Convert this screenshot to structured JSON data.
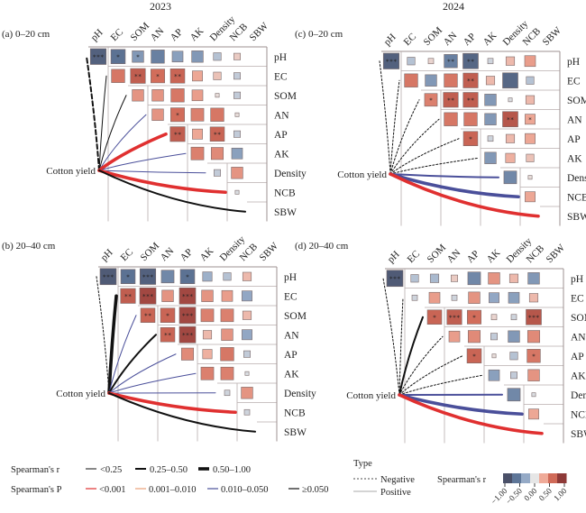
{
  "chart_data": {
    "type": "heatmap",
    "description": "Mantel-style correlation heatmaps of soil properties with links to cotton yield",
    "variables": [
      "pH",
      "EC",
      "SOM",
      "AN",
      "AP",
      "AK",
      "Density",
      "NCB",
      "SBW"
    ],
    "target_label": "Cotton yield",
    "years": [
      "2023",
      "2024"
    ],
    "panels": [
      {
        "id": "a",
        "title": "(a) 0–20 cm",
        "year": "2023",
        "cells": [
          [
            -0.85,
            -0.7,
            -0.45,
            -0.6,
            -0.4,
            -0.45,
            -0.2,
            0.15
          ],
          [
            0.6,
            0.75,
            0.65,
            0.7,
            0.35,
            0.2,
            -0.15
          ],
          [
            0.45,
            0.45,
            0.6,
            0.4,
            0.05,
            -0.15
          ],
          [
            0.45,
            0.65,
            0.55,
            0.6,
            0.05
          ],
          [
            0.75,
            0.35,
            0.7,
            -0.15
          ],
          [
            0.55,
            0.5,
            -0.4
          ],
          [
            -0.15,
            0.45
          ],
          [
            -0.05
          ]
        ],
        "stars": [
          [
            "***",
            "*",
            "*",
            "",
            "",
            "",
            "",
            ""
          ],
          [
            "",
            "**",
            "*",
            "**",
            "",
            "",
            ""
          ],
          [
            "",
            "",
            "",
            "",
            "",
            ""
          ],
          [
            "",
            "*",
            "",
            "",
            ""
          ],
          [
            "**",
            "",
            "**",
            ""
          ],
          [
            "",
            ""
          ],
          [
            "",
            ""
          ],
          [
            ""
          ]
        ],
        "links": [
          {
            "to": "pH",
            "r_class": "0.25-0.50",
            "p_class": ">=0.050",
            "type": "Negative"
          },
          {
            "to": "EC",
            "r_class": "<0.25",
            "p_class": ">=0.050",
            "type": "Positive"
          },
          {
            "to": "SOM",
            "r_class": "<0.25",
            "p_class": ">=0.050",
            "type": "Positive"
          },
          {
            "to": "AN",
            "r_class": "<0.25",
            "p_class": "0.010-0.050",
            "type": "Positive"
          },
          {
            "to": "AP",
            "r_class": "0.50-1.00",
            "p_class": "<0.001",
            "type": "Positive"
          },
          {
            "to": "AK",
            "r_class": "<0.25",
            "p_class": "0.010-0.050",
            "type": "Positive"
          },
          {
            "to": "Density",
            "r_class": "<0.25",
            "p_class": "0.010-0.050",
            "type": "Positive"
          },
          {
            "to": "NCB",
            "r_class": "0.50-1.00",
            "p_class": "<0.001",
            "type": "Positive"
          },
          {
            "to": "SBW",
            "r_class": "0.25-0.50",
            "p_class": ">=0.050",
            "type": "Positive"
          }
        ]
      },
      {
        "id": "c",
        "title": "(c) 0–20 cm",
        "year": "2024",
        "cells": [
          [
            -0.85,
            -0.2,
            0.1,
            -0.6,
            -0.8,
            -0.1,
            0.25,
            0.4
          ],
          [
            0.6,
            -0.45,
            0.6,
            0.75,
            0.25,
            -0.8,
            -0.2
          ],
          [
            0.55,
            0.75,
            0.75,
            -0.45,
            -0.05,
            0.25
          ],
          [
            0.6,
            0.6,
            -0.45,
            0.8,
            0.35
          ],
          [
            0.7,
            -0.1,
            0.25,
            0.35
          ],
          [
            -0.45,
            0.3,
            0.2
          ],
          [
            -0.55,
            0.05
          ],
          [
            0.35
          ]
        ],
        "stars": [
          [
            "***",
            "",
            "",
            "**",
            "**",
            "",
            "",
            ""
          ],
          [
            "",
            "",
            "",
            "**",
            "",
            "",
            ""
          ],
          [
            "*",
            "**",
            "**",
            "",
            "",
            ""
          ],
          [
            "",
            "",
            "",
            "**",
            "*"
          ],
          [
            "*",
            "",
            "",
            ""
          ],
          [
            "",
            ""
          ],
          [
            "",
            ""
          ],
          [
            ""
          ]
        ],
        "links": [
          {
            "to": "pH",
            "r_class": "<0.25",
            "p_class": ">=0.050",
            "type": "Negative"
          },
          {
            "to": "EC",
            "r_class": "<0.25",
            "p_class": ">=0.050",
            "type": "Negative"
          },
          {
            "to": "SOM",
            "r_class": "<0.25",
            "p_class": ">=0.050",
            "type": "Negative"
          },
          {
            "to": "AN",
            "r_class": "<0.25",
            "p_class": ">=0.050",
            "type": "Negative"
          },
          {
            "to": "AP",
            "r_class": "<0.25",
            "p_class": ">=0.050",
            "type": "Negative"
          },
          {
            "to": "AK",
            "r_class": "<0.25",
            "p_class": ">=0.050",
            "type": "Negative"
          },
          {
            "to": "Density",
            "r_class": "0.25-0.50",
            "p_class": "0.010-0.050",
            "type": "Positive"
          },
          {
            "to": "NCB",
            "r_class": "0.50-1.00",
            "p_class": "0.010-0.050",
            "type": "Positive"
          },
          {
            "to": "SBW",
            "r_class": "0.50-1.00",
            "p_class": "<0.001",
            "type": "Positive"
          }
        ]
      },
      {
        "id": "b",
        "title": "(b) 20–40 cm",
        "year": "2023",
        "cells": [
          [
            -0.9,
            -0.7,
            -0.85,
            -0.55,
            -0.7,
            -0.3,
            -0.2,
            0.25
          ],
          [
            0.75,
            0.9,
            0.45,
            0.9,
            0.45,
            0.4,
            -0.35
          ],
          [
            0.7,
            0.7,
            0.9,
            0.55,
            0.55,
            0.25
          ],
          [
            0.7,
            0.9,
            0.25,
            0.45,
            -0.35
          ],
          [
            0.5,
            0.3,
            0.6,
            -0.15
          ],
          [
            0.55,
            0.55,
            -0.05
          ],
          [
            -0.1,
            0.45
          ],
          [
            -0.1
          ]
        ],
        "stars": [
          [
            "***",
            "*",
            "***",
            "",
            "*",
            "",
            "",
            ""
          ],
          [
            "**",
            "***",
            "",
            "***",
            "",
            "",
            ""
          ],
          [
            "**",
            "*",
            "***",
            "",
            "",
            ""
          ],
          [
            "**",
            "***",
            "",
            "",
            ""
          ],
          [
            "",
            "",
            "",
            ""
          ],
          [
            "",
            ""
          ],
          [
            "",
            ""
          ],
          [
            ""
          ]
        ],
        "links": [
          {
            "to": "pH",
            "r_class": "<0.25",
            "p_class": ">=0.050",
            "type": "Negative"
          },
          {
            "to": "EC",
            "r_class": "0.50-1.00",
            "p_class": ">=0.050",
            "type": "Positive"
          },
          {
            "to": "SOM",
            "r_class": "<0.25",
            "p_class": "0.010-0.050",
            "type": "Positive"
          },
          {
            "to": "AN",
            "r_class": "0.25-0.50",
            "p_class": ">=0.050",
            "type": "Positive"
          },
          {
            "to": "AP",
            "r_class": "<0.25",
            "p_class": "0.010-0.050",
            "type": "Positive"
          },
          {
            "to": "AK",
            "r_class": "<0.25",
            "p_class": "0.010-0.050",
            "type": "Positive"
          },
          {
            "to": "Density",
            "r_class": "<0.25",
            "p_class": "0.010-0.050",
            "type": "Positive"
          },
          {
            "to": "NCB",
            "r_class": "0.50-1.00",
            "p_class": "<0.001",
            "type": "Positive"
          },
          {
            "to": "SBW",
            "r_class": "0.25-0.50",
            "p_class": ">=0.050",
            "type": "Positive"
          }
        ]
      },
      {
        "id": "d",
        "title": "(d) 20–40 cm",
        "year": "2024",
        "cells": [
          [
            -0.9,
            -0.2,
            -0.25,
            0.15,
            -0.55,
            0.45,
            0.25,
            -0.45
          ],
          [
            -0.1,
            0.4,
            -0.1,
            0.45,
            -0.35,
            -0.4,
            0.25
          ],
          [
            0.7,
            0.75,
            0.65,
            0.1,
            -0.1,
            0.8
          ],
          [
            0.4,
            0.5,
            -0.15,
            -0.45,
            0.5
          ],
          [
            0.7,
            0.05,
            -0.2,
            0.6
          ],
          [
            -0.4,
            -0.15,
            0.45
          ],
          [
            -0.55,
            -0.05
          ],
          [
            0.35
          ]
        ],
        "stars": [
          [
            "***",
            "",
            "",
            "",
            "",
            "",
            "",
            ""
          ],
          [
            "",
            "",
            "",
            "",
            "",
            "",
            ""
          ],
          [
            "*",
            "***",
            "*",
            "",
            "",
            "***"
          ],
          [
            "",
            "",
            "",
            "",
            ""
          ],
          [
            "*",
            "",
            "",
            "*"
          ],
          [
            "",
            ""
          ],
          [
            "",
            ""
          ],
          [
            ""
          ]
        ],
        "links": [
          {
            "to": "pH",
            "r_class": "<0.25",
            "p_class": ">=0.050",
            "type": "Negative"
          },
          {
            "to": "EC",
            "r_class": "<0.25",
            "p_class": ">=0.050",
            "type": "Negative"
          },
          {
            "to": "SOM",
            "r_class": "0.25-0.50",
            "p_class": ">=0.050",
            "type": "Positive"
          },
          {
            "to": "AN",
            "r_class": "<0.25",
            "p_class": ">=0.050",
            "type": "Negative"
          },
          {
            "to": "AP",
            "r_class": "<0.25",
            "p_class": ">=0.050",
            "type": "Negative"
          },
          {
            "to": "AK",
            "r_class": "<0.25",
            "p_class": ">=0.050",
            "type": "Negative"
          },
          {
            "to": "Density",
            "r_class": "0.25-0.50",
            "p_class": "0.010-0.050",
            "type": "Positive"
          },
          {
            "to": "NCB",
            "r_class": "0.50-1.00",
            "p_class": "0.010-0.050",
            "type": "Positive"
          },
          {
            "to": "SBW",
            "r_class": "0.50-1.00",
            "p_class": "<0.001",
            "type": "Positive"
          }
        ]
      }
    ],
    "legend": {
      "r_label": "Spearman's r",
      "r_classes": [
        "<0.25",
        "0.25–0.50",
        "0.50–1.00"
      ],
      "p_label": "Spearman's P",
      "p_classes": [
        "<0.001",
        "0.001–0.010",
        "0.010–0.050",
        "≥0.050"
      ],
      "p_colors": [
        "#e03030",
        "#e8a078",
        "#4a4f9a",
        "#111111"
      ],
      "type_title": "Type",
      "type_items": [
        "Negative",
        "Positive"
      ],
      "colorbar_label": "Spearman's r",
      "colorbar_ticks": [
        "−1.00",
        "−0.50",
        "0.00",
        "0.50",
        "1.00"
      ],
      "colorbar_range": [
        -1,
        1
      ],
      "colorbar_colors": [
        "#4a5068",
        "#5e7698",
        "#95aac6",
        "#e6e6e6",
        "#efaa98",
        "#d06a58",
        "#8e3a38"
      ]
    }
  }
}
